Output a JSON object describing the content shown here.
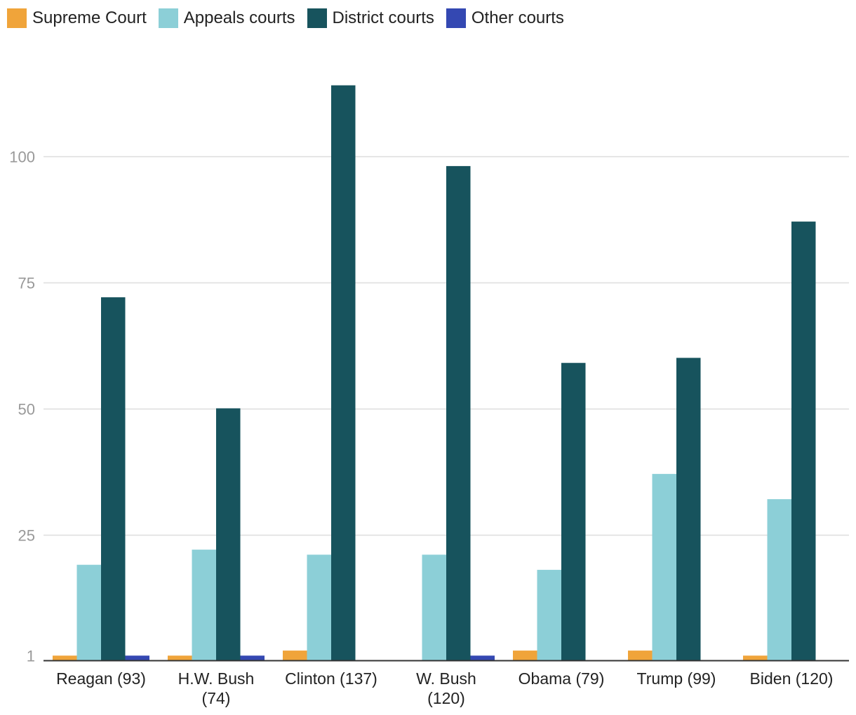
{
  "colors": {
    "supreme": "#f0a43a",
    "appeals": "#8ccfd7",
    "district": "#17535d",
    "other": "#3448b2",
    "grid": "#dedede",
    "axis": "#333333",
    "tick_text": "#999999",
    "category_text": "#222222"
  },
  "chart_data": {
    "type": "bar",
    "categories": [
      [
        "Reagan (93)"
      ],
      [
        "H.W. Bush",
        "(74)"
      ],
      [
        "Clinton (137)"
      ],
      [
        "W. Bush",
        "(120)"
      ],
      [
        "Obama (79)"
      ],
      [
        "Trump (99)"
      ],
      [
        "Biden (120)"
      ]
    ],
    "series": [
      {
        "name": "Supreme Court",
        "color_key": "supreme",
        "values": [
          1,
          1,
          2,
          0,
          2,
          2,
          1
        ]
      },
      {
        "name": "Appeals courts",
        "color_key": "appeals",
        "values": [
          19,
          22,
          21,
          21,
          18,
          37,
          32
        ]
      },
      {
        "name": "District courts",
        "color_key": "district",
        "values": [
          72,
          50,
          114,
          98,
          59,
          60,
          87
        ]
      },
      {
        "name": "Other courts",
        "color_key": "other",
        "values": [
          1,
          1,
          0,
          1,
          0,
          0,
          0
        ]
      }
    ],
    "y_ticks": [
      1,
      25,
      50,
      75,
      100
    ],
    "ylim": [
      0,
      125
    ],
    "grid": true,
    "legend_position": "top-left",
    "title": "",
    "xlabel": "",
    "ylabel": ""
  }
}
